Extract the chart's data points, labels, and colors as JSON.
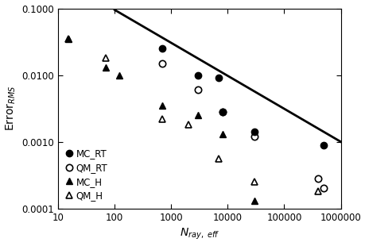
{
  "MC_RT_x": [
    700,
    3000,
    7000,
    8000,
    30000,
    500000
  ],
  "MC_RT_y": [
    0.025,
    0.01,
    0.009,
    0.0028,
    0.0014,
    0.0009
  ],
  "QM_RT_x": [
    700,
    3000,
    8000,
    30000,
    400000,
    500000
  ],
  "QM_RT_y": [
    0.015,
    0.006,
    0.0028,
    0.0012,
    0.00028,
    0.0002
  ],
  "MC_H_x": [
    15,
    70,
    120,
    700,
    3000,
    8000,
    30000
  ],
  "MC_H_y": [
    0.035,
    0.013,
    0.01,
    0.0035,
    0.0025,
    0.0013,
    0.00013
  ],
  "QM_H_x": [
    15,
    70,
    700,
    2000,
    7000,
    30000,
    400000
  ],
  "QM_H_y": [
    0.035,
    0.018,
    0.0022,
    0.0018,
    0.00055,
    0.00025,
    0.00018
  ],
  "ref_line_x": [
    100,
    1000000
  ],
  "ref_line_y": [
    0.095,
    0.001
  ],
  "xlim": [
    10,
    1000000
  ],
  "ylim": [
    0.0001,
    0.1
  ],
  "xlabel": "$N_{ray,\\ eff}$",
  "ylabel": "Error$_{RMS}$",
  "legend_labels": [
    "MC_RT",
    "QM_RT",
    "MC_H",
    "QM_H"
  ],
  "axis_fontsize": 10,
  "legend_fontsize": 8.5,
  "tick_fontsize": 8.5
}
